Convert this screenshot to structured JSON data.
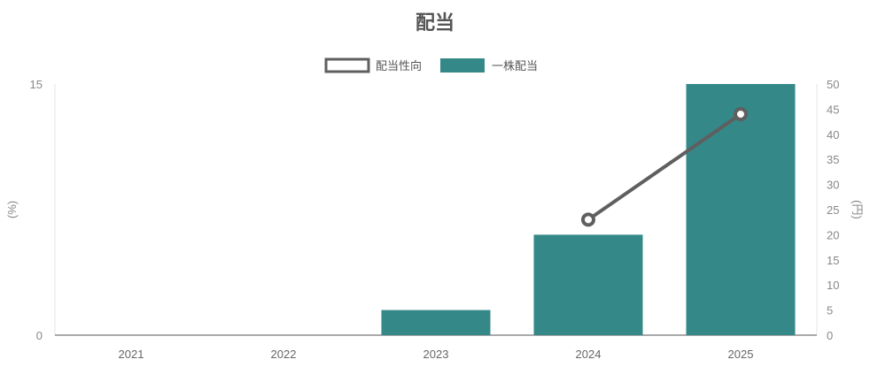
{
  "chart_data": {
    "type": "bar",
    "title": "配当",
    "categories": [
      "2021",
      "2022",
      "2023",
      "2024",
      "2025"
    ],
    "series": [
      {
        "name": "配当性向",
        "type": "line",
        "axis": "left",
        "color": "#5f5f5f",
        "values": [
          null,
          null,
          null,
          6.9,
          13.2
        ]
      },
      {
        "name": "一株配当",
        "type": "bar",
        "axis": "right",
        "color": "#358888",
        "values": [
          0,
          0,
          5,
          20,
          50
        ]
      }
    ],
    "y_left": {
      "label": "(%)",
      "range": [
        0,
        15
      ],
      "ticks": [
        0,
        15
      ]
    },
    "y_right": {
      "label": "(円)",
      "range": [
        0,
        50
      ],
      "ticks": [
        0,
        5,
        10,
        15,
        20,
        25,
        30,
        35,
        40,
        45,
        50
      ]
    },
    "legend_position": "top-center",
    "grid": false
  }
}
